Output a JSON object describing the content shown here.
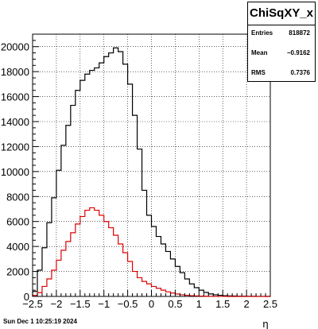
{
  "chart_data": {
    "type": "histogram",
    "title": "",
    "xlabel": "η",
    "ylabel": "",
    "xlim": [
      -2.5,
      2.5
    ],
    "ylim": [
      0,
      21000
    ],
    "x_ticks": [
      "−2.5",
      "−2",
      "−1.5",
      "−1",
      "−0.5",
      "0",
      "0.5",
      "1",
      "1.5",
      "2",
      "2.5"
    ],
    "y_ticks": [
      "0",
      "2000",
      "4000",
      "6000",
      "8000",
      "10000",
      "12000",
      "14000",
      "16000",
      "18000",
      "20000"
    ],
    "bin_edges": [
      -2.5,
      -2.4,
      -2.3,
      -2.2,
      -2.1,
      -2.0,
      -1.9,
      -1.8,
      -1.7,
      -1.6,
      -1.5,
      -1.4,
      -1.3,
      -1.2,
      -1.1,
      -1.0,
      -0.9,
      -0.8,
      -0.7,
      -0.6,
      -0.5,
      -0.4,
      -0.3,
      -0.2,
      -0.1,
      0.0,
      0.1,
      0.2,
      0.3,
      0.4,
      0.5,
      0.6,
      0.7,
      0.8,
      0.9,
      1.0,
      1.1,
      1.2,
      1.3,
      1.4,
      1.5,
      1.6,
      1.7,
      1.8,
      1.9,
      2.0,
      2.1,
      2.2,
      2.3,
      2.4,
      2.5
    ],
    "series": [
      {
        "color": "#000000",
        "values": [
          400,
          2100,
          3900,
          5900,
          7900,
          10100,
          12100,
          13700,
          15300,
          16500,
          17300,
          17800,
          18100,
          18300,
          18700,
          19200,
          19500,
          19900,
          19600,
          18600,
          17000,
          14500,
          11800,
          8500,
          6500,
          5600,
          4800,
          4200,
          3600,
          3000,
          2400,
          1900,
          1400,
          1000,
          700,
          500,
          320,
          200,
          130,
          90,
          60,
          40,
          30,
          20,
          15,
          10,
          8,
          5,
          3,
          2
        ]
      },
      {
        "color": "#dd0000",
        "values": [
          80,
          300,
          800,
          1400,
          2100,
          2900,
          3700,
          4400,
          5100,
          5800,
          6400,
          6900,
          7100,
          6900,
          6500,
          6000,
          5500,
          4900,
          4200,
          3500,
          2800,
          2000,
          1500,
          1200,
          1000,
          800,
          650,
          500,
          370,
          270,
          190,
          130,
          90,
          60,
          40,
          25,
          15,
          10,
          6,
          4,
          3,
          2,
          1,
          1,
          0,
          0,
          0,
          0,
          0,
          0
        ]
      }
    ]
  },
  "stats": {
    "title": "ChiSqXY_x",
    "rows": [
      {
        "label": "Entries",
        "value": "818872"
      },
      {
        "label": "Mean",
        "value": "−0.9162"
      },
      {
        "label": "RMS",
        "value": "0.7376"
      }
    ]
  },
  "footer": "Sun Dec  1 10:25:19 2024"
}
